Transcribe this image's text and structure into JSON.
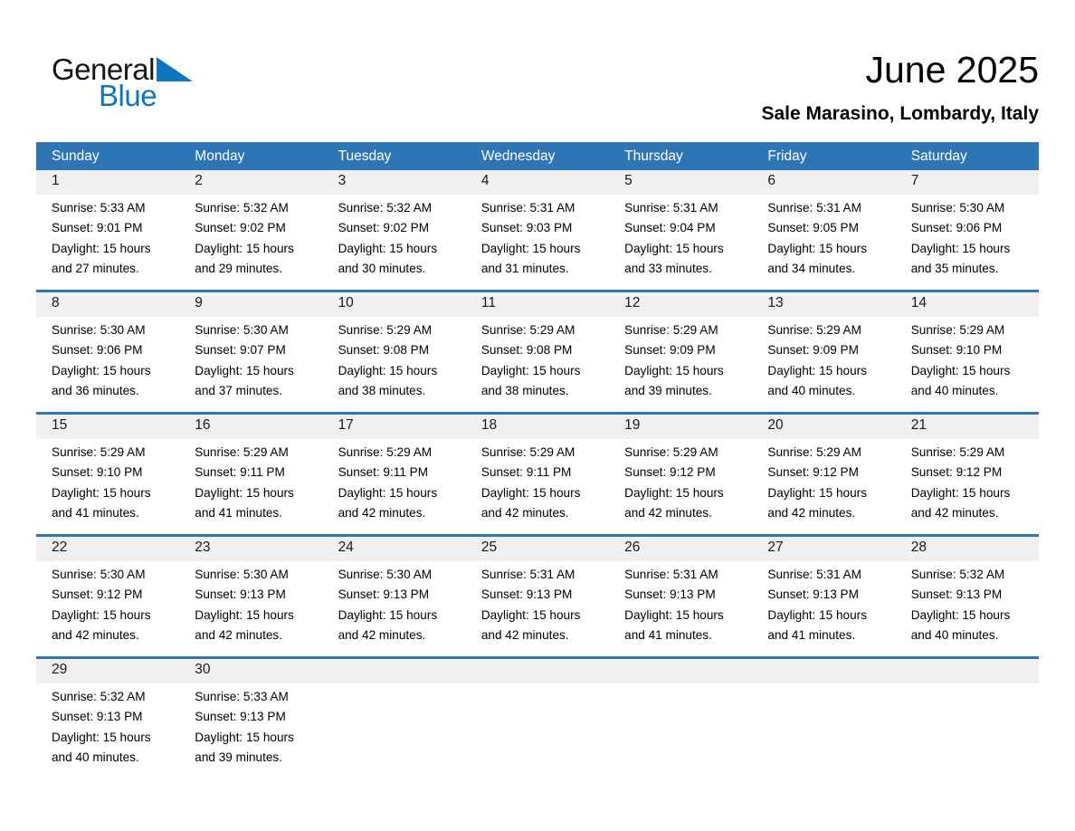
{
  "logo": {
    "word1": "General",
    "word2": "Blue"
  },
  "header": {
    "title": "June 2025",
    "subtitle": "Sale Marasino, Lombardy, Italy"
  },
  "colors": {
    "header_bar_blue": "#2e75b5",
    "week_divider_blue": "#2e75b5",
    "logo_blue": "#0e76bd",
    "day_number_band_gray": "#f0f0f0",
    "header_text": "#ffffff",
    "body_text": "#000000"
  },
  "calendar": {
    "day_headers": [
      "Sunday",
      "Monday",
      "Tuesday",
      "Wednesday",
      "Thursday",
      "Friday",
      "Saturday"
    ],
    "weeks": [
      [
        {
          "day": "1",
          "sunrise": "Sunrise: 5:33 AM",
          "sunset": "Sunset: 9:01 PM",
          "daylight_line1": "Daylight: 15 hours",
          "daylight_line2": "and 27 minutes."
        },
        {
          "day": "2",
          "sunrise": "Sunrise: 5:32 AM",
          "sunset": "Sunset: 9:02 PM",
          "daylight_line1": "Daylight: 15 hours",
          "daylight_line2": "and 29 minutes."
        },
        {
          "day": "3",
          "sunrise": "Sunrise: 5:32 AM",
          "sunset": "Sunset: 9:02 PM",
          "daylight_line1": "Daylight: 15 hours",
          "daylight_line2": "and 30 minutes."
        },
        {
          "day": "4",
          "sunrise": "Sunrise: 5:31 AM",
          "sunset": "Sunset: 9:03 PM",
          "daylight_line1": "Daylight: 15 hours",
          "daylight_line2": "and 31 minutes."
        },
        {
          "day": "5",
          "sunrise": "Sunrise: 5:31 AM",
          "sunset": "Sunset: 9:04 PM",
          "daylight_line1": "Daylight: 15 hours",
          "daylight_line2": "and 33 minutes."
        },
        {
          "day": "6",
          "sunrise": "Sunrise: 5:31 AM",
          "sunset": "Sunset: 9:05 PM",
          "daylight_line1": "Daylight: 15 hours",
          "daylight_line2": "and 34 minutes."
        },
        {
          "day": "7",
          "sunrise": "Sunrise: 5:30 AM",
          "sunset": "Sunset: 9:06 PM",
          "daylight_line1": "Daylight: 15 hours",
          "daylight_line2": "and 35 minutes."
        }
      ],
      [
        {
          "day": "8",
          "sunrise": "Sunrise: 5:30 AM",
          "sunset": "Sunset: 9:06 PM",
          "daylight_line1": "Daylight: 15 hours",
          "daylight_line2": "and 36 minutes."
        },
        {
          "day": "9",
          "sunrise": "Sunrise: 5:30 AM",
          "sunset": "Sunset: 9:07 PM",
          "daylight_line1": "Daylight: 15 hours",
          "daylight_line2": "and 37 minutes."
        },
        {
          "day": "10",
          "sunrise": "Sunrise: 5:29 AM",
          "sunset": "Sunset: 9:08 PM",
          "daylight_line1": "Daylight: 15 hours",
          "daylight_line2": "and 38 minutes."
        },
        {
          "day": "11",
          "sunrise": "Sunrise: 5:29 AM",
          "sunset": "Sunset: 9:08 PM",
          "daylight_line1": "Daylight: 15 hours",
          "daylight_line2": "and 38 minutes."
        },
        {
          "day": "12",
          "sunrise": "Sunrise: 5:29 AM",
          "sunset": "Sunset: 9:09 PM",
          "daylight_line1": "Daylight: 15 hours",
          "daylight_line2": "and 39 minutes."
        },
        {
          "day": "13",
          "sunrise": "Sunrise: 5:29 AM",
          "sunset": "Sunset: 9:09 PM",
          "daylight_line1": "Daylight: 15 hours",
          "daylight_line2": "and 40 minutes."
        },
        {
          "day": "14",
          "sunrise": "Sunrise: 5:29 AM",
          "sunset": "Sunset: 9:10 PM",
          "daylight_line1": "Daylight: 15 hours",
          "daylight_line2": "and 40 minutes."
        }
      ],
      [
        {
          "day": "15",
          "sunrise": "Sunrise: 5:29 AM",
          "sunset": "Sunset: 9:10 PM",
          "daylight_line1": "Daylight: 15 hours",
          "daylight_line2": "and 41 minutes."
        },
        {
          "day": "16",
          "sunrise": "Sunrise: 5:29 AM",
          "sunset": "Sunset: 9:11 PM",
          "daylight_line1": "Daylight: 15 hours",
          "daylight_line2": "and 41 minutes."
        },
        {
          "day": "17",
          "sunrise": "Sunrise: 5:29 AM",
          "sunset": "Sunset: 9:11 PM",
          "daylight_line1": "Daylight: 15 hours",
          "daylight_line2": "and 42 minutes."
        },
        {
          "day": "18",
          "sunrise": "Sunrise: 5:29 AM",
          "sunset": "Sunset: 9:11 PM",
          "daylight_line1": "Daylight: 15 hours",
          "daylight_line2": "and 42 minutes."
        },
        {
          "day": "19",
          "sunrise": "Sunrise: 5:29 AM",
          "sunset": "Sunset: 9:12 PM",
          "daylight_line1": "Daylight: 15 hours",
          "daylight_line2": "and 42 minutes."
        },
        {
          "day": "20",
          "sunrise": "Sunrise: 5:29 AM",
          "sunset": "Sunset: 9:12 PM",
          "daylight_line1": "Daylight: 15 hours",
          "daylight_line2": "and 42 minutes."
        },
        {
          "day": "21",
          "sunrise": "Sunrise: 5:29 AM",
          "sunset": "Sunset: 9:12 PM",
          "daylight_line1": "Daylight: 15 hours",
          "daylight_line2": "and 42 minutes."
        }
      ],
      [
        {
          "day": "22",
          "sunrise": "Sunrise: 5:30 AM",
          "sunset": "Sunset: 9:12 PM",
          "daylight_line1": "Daylight: 15 hours",
          "daylight_line2": "and 42 minutes."
        },
        {
          "day": "23",
          "sunrise": "Sunrise: 5:30 AM",
          "sunset": "Sunset: 9:13 PM",
          "daylight_line1": "Daylight: 15 hours",
          "daylight_line2": "and 42 minutes."
        },
        {
          "day": "24",
          "sunrise": "Sunrise: 5:30 AM",
          "sunset": "Sunset: 9:13 PM",
          "daylight_line1": "Daylight: 15 hours",
          "daylight_line2": "and 42 minutes."
        },
        {
          "day": "25",
          "sunrise": "Sunrise: 5:31 AM",
          "sunset": "Sunset: 9:13 PM",
          "daylight_line1": "Daylight: 15 hours",
          "daylight_line2": "and 42 minutes."
        },
        {
          "day": "26",
          "sunrise": "Sunrise: 5:31 AM",
          "sunset": "Sunset: 9:13 PM",
          "daylight_line1": "Daylight: 15 hours",
          "daylight_line2": "and 41 minutes."
        },
        {
          "day": "27",
          "sunrise": "Sunrise: 5:31 AM",
          "sunset": "Sunset: 9:13 PM",
          "daylight_line1": "Daylight: 15 hours",
          "daylight_line2": "and 41 minutes."
        },
        {
          "day": "28",
          "sunrise": "Sunrise: 5:32 AM",
          "sunset": "Sunset: 9:13 PM",
          "daylight_line1": "Daylight: 15 hours",
          "daylight_line2": "and 40 minutes."
        }
      ],
      [
        {
          "day": "29",
          "sunrise": "Sunrise: 5:32 AM",
          "sunset": "Sunset: 9:13 PM",
          "daylight_line1": "Daylight: 15 hours",
          "daylight_line2": "and 40 minutes."
        },
        {
          "day": "30",
          "sunrise": "Sunrise: 5:33 AM",
          "sunset": "Sunset: 9:13 PM",
          "daylight_line1": "Daylight: 15 hours",
          "daylight_line2": "and 39 minutes."
        },
        null,
        null,
        null,
        null,
        null
      ]
    ]
  }
}
